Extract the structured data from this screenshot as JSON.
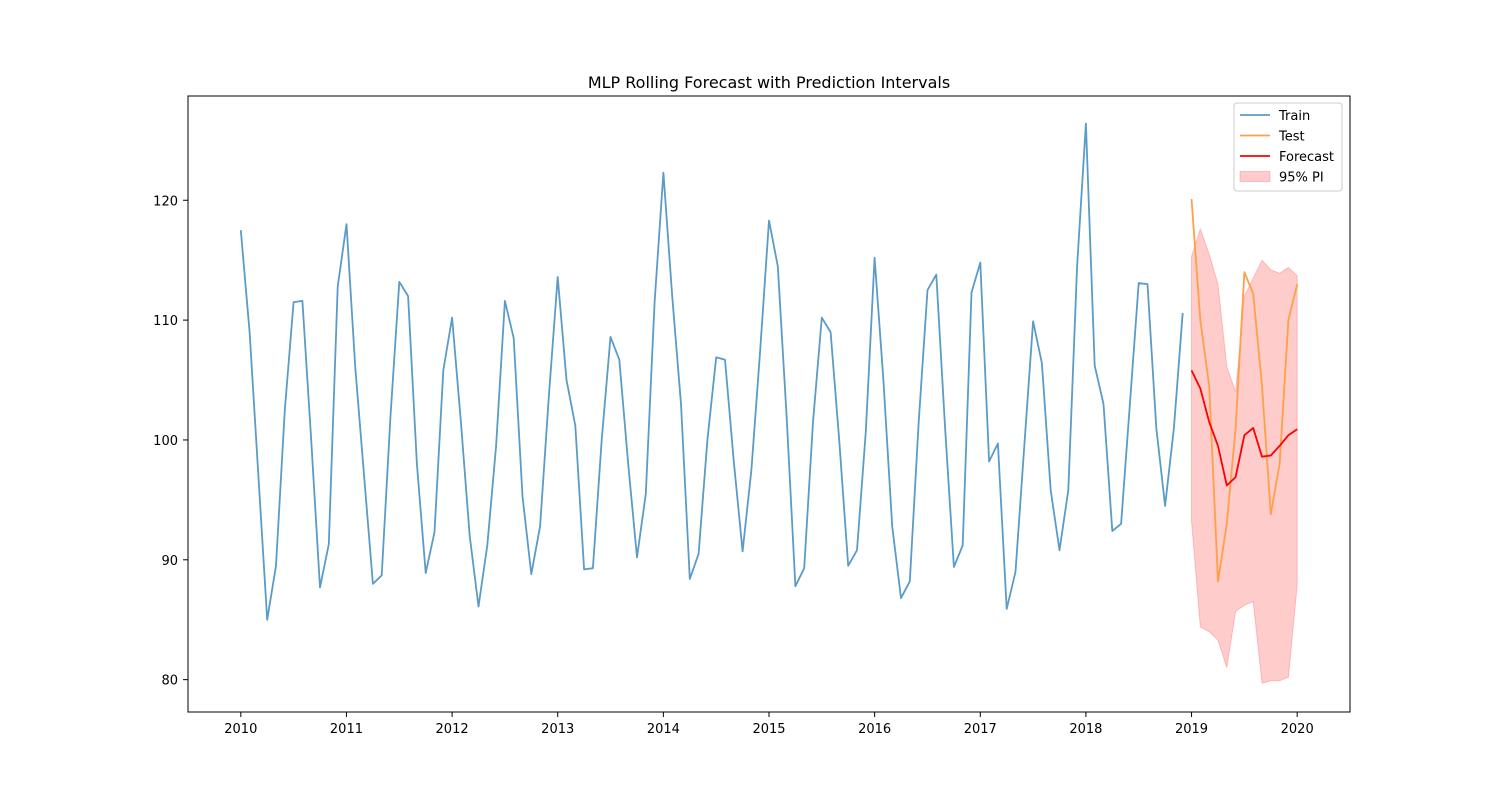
{
  "chart_data": {
    "type": "line",
    "title": "MLP Rolling Forecast with Prediction Intervals",
    "xlabel": "",
    "ylabel": "",
    "x_ticks": [
      "2010",
      "2011",
      "2012",
      "2013",
      "2014",
      "2015",
      "2016",
      "2017",
      "2018",
      "2019",
      "2020"
    ],
    "y_ticks": [
      80,
      90,
      100,
      110,
      120
    ],
    "xlim": [
      2009.5,
      2020.5
    ],
    "ylim": [
      77.3,
      128.7
    ],
    "grid": false,
    "legend_position": "top-right",
    "series": [
      {
        "name": "Train",
        "color": "#5b9bc8",
        "x": [
          "2010-01",
          "2010-02",
          "2010-03",
          "2010-04",
          "2010-05",
          "2010-06",
          "2010-07",
          "2010-08",
          "2010-09",
          "2010-10",
          "2010-11",
          "2010-12",
          "2011-01",
          "2011-02",
          "2011-03",
          "2011-04",
          "2011-05",
          "2011-06",
          "2011-07",
          "2011-08",
          "2011-09",
          "2011-10",
          "2011-11",
          "2011-12",
          "2012-01",
          "2012-02",
          "2012-03",
          "2012-04",
          "2012-05",
          "2012-06",
          "2012-07",
          "2012-08",
          "2012-09",
          "2012-10",
          "2012-11",
          "2012-12",
          "2013-01",
          "2013-02",
          "2013-03",
          "2013-04",
          "2013-05",
          "2013-06",
          "2013-07",
          "2013-08",
          "2013-09",
          "2013-10",
          "2013-11",
          "2013-12",
          "2014-01",
          "2014-02",
          "2014-03",
          "2014-04",
          "2014-05",
          "2014-06",
          "2014-07",
          "2014-08",
          "2014-09",
          "2014-10",
          "2014-11",
          "2014-12",
          "2015-01",
          "2015-02",
          "2015-03",
          "2015-04",
          "2015-05",
          "2015-06",
          "2015-07",
          "2015-08",
          "2015-09",
          "2015-10",
          "2015-11",
          "2015-12",
          "2016-01",
          "2016-02",
          "2016-03",
          "2016-04",
          "2016-05",
          "2016-06",
          "2016-07",
          "2016-08",
          "2016-09",
          "2016-10",
          "2016-11",
          "2016-12",
          "2017-01",
          "2017-02",
          "2017-03",
          "2017-04",
          "2017-05",
          "2017-06",
          "2017-07",
          "2017-08",
          "2017-09",
          "2017-10",
          "2017-11",
          "2017-12",
          "2018-01",
          "2018-02",
          "2018-03",
          "2018-04",
          "2018-05",
          "2018-06",
          "2018-07",
          "2018-08",
          "2018-09",
          "2018-10",
          "2018-11",
          "2018-12"
        ],
        "values": [
          117.5,
          109,
          97,
          85,
          89.5,
          102.5,
          111.5,
          111.6,
          100,
          87.7,
          91.3,
          112.8,
          118,
          106,
          97,
          88,
          88.7,
          102,
          113.2,
          112,
          98,
          88.9,
          92.3,
          105.8,
          110.2,
          101.5,
          92,
          86.1,
          91.2,
          99.5,
          111.6,
          108.5,
          95.3,
          88.8,
          92.8,
          103.7,
          113.6,
          105,
          101.2,
          89.2,
          89.3,
          100,
          108.6,
          106.7,
          98,
          90.2,
          95.5,
          111.5,
          122.3,
          112,
          103,
          88.4,
          90.5,
          100,
          106.9,
          106.7,
          98.2,
          90.7,
          97.5,
          107.5,
          118.3,
          114.5,
          102,
          87.8,
          89.3,
          101.5,
          110.2,
          109,
          99.8,
          89.5,
          90.8,
          100.7,
          115.2,
          105,
          92.8,
          86.8,
          88.2,
          101.5,
          112.5,
          113.8,
          101,
          89.4,
          91.2,
          112.3,
          114.8,
          98.2,
          99.7,
          85.9,
          89,
          99.5,
          109.9,
          106.4,
          95.8,
          90.8,
          95.8,
          114.5,
          126.4,
          106.2,
          103,
          92.4,
          93,
          103,
          113.1,
          113,
          101,
          94.5,
          101,
          110.6
        ]
      },
      {
        "name": "Test",
        "color": "#ff9f48",
        "x": [
          "2019-01",
          "2019-02",
          "2019-03",
          "2019-04",
          "2019-05",
          "2019-06",
          "2019-07",
          "2019-08",
          "2019-09",
          "2019-10",
          "2019-11",
          "2019-12",
          "2020-01"
        ],
        "values": [
          120.1,
          110,
          104.5,
          88.2,
          93,
          101,
          114,
          112.2,
          104.5,
          93.8,
          98,
          110,
          113
        ]
      },
      {
        "name": "Forecast",
        "color": "#ff0000",
        "x": [
          "2019-01",
          "2019-02",
          "2019-03",
          "2019-04",
          "2019-05",
          "2019-06",
          "2019-07",
          "2019-08",
          "2019-09",
          "2019-10",
          "2019-11",
          "2019-12",
          "2020-01"
        ],
        "values": [
          105.8,
          104.3,
          101.5,
          99.5,
          96.2,
          96.9,
          100.4,
          101,
          98.6,
          98.7,
          99.5,
          100.4,
          100.9
        ]
      }
    ],
    "interval": {
      "name": "95% PI",
      "color": "#ff0000",
      "x": [
        "2019-01",
        "2019-02",
        "2019-03",
        "2019-04",
        "2019-05",
        "2019-06",
        "2019-07",
        "2019-08",
        "2019-09",
        "2019-10",
        "2019-11",
        "2019-12",
        "2020-01"
      ],
      "lower": [
        93.2,
        84.4,
        84,
        83.3,
        81,
        85.7,
        86.2,
        86.5,
        79.7,
        79.9,
        79.9,
        80.2,
        87.9
      ],
      "upper": [
        115.3,
        117.6,
        115.5,
        113,
        106.1,
        104,
        112,
        113.5,
        115,
        114.2,
        113.9,
        114.4,
        113.7
      ]
    }
  }
}
